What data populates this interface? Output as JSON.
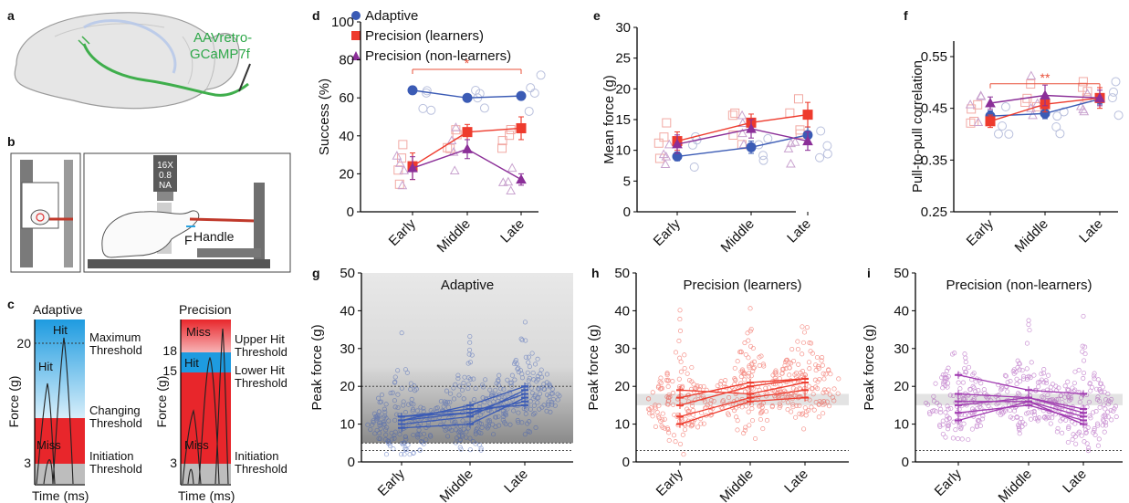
{
  "panels": {
    "a": {
      "label": "a",
      "virus_line1": "AAVretro-",
      "virus_line2": "GCaMP7f"
    },
    "b": {
      "label": "b",
      "objective_line1": "16X",
      "objective_line2": "0.8",
      "objective_line3": "NA",
      "force_label": "F",
      "handle_label": "Handle"
    },
    "c": {
      "label": "c",
      "adaptive_title": "Adaptive",
      "precision_title": "Precision",
      "ylabel": "Force (g)",
      "xlabel": "Time (ms)",
      "adaptive_ticks": [
        "20",
        "3"
      ],
      "precision_ticks": [
        "18",
        "15",
        "3"
      ],
      "adaptive_regions": [
        "Hit",
        "Hit",
        "Miss"
      ],
      "precision_regions": [
        "Miss",
        "Hit",
        "Miss"
      ],
      "adaptive_thresholds": [
        {
          "line1": "Maximum",
          "line2": "Threshold"
        },
        {
          "line1": "Changing",
          "line2": "Threshold"
        },
        {
          "line1": "Initiation",
          "line2": "Threshold"
        }
      ],
      "precision_thresholds": [
        {
          "line1": "Upper Hit",
          "line2": "Threshold"
        },
        {
          "line1": "Lower Hit",
          "line2": "Threshold"
        },
        {
          "line1": "Initiation",
          "line2": "Threshold"
        }
      ],
      "colors": {
        "hit_top": "#1e9be0",
        "hit_bottom": "#d7eefa",
        "miss": "#e8262b",
        "init": "#bdbdbd"
      }
    }
  },
  "legend": {
    "items": [
      {
        "label": "Adaptive",
        "color": "#3b5bb5",
        "marker": "circle"
      },
      {
        "label": "Precision (learners)",
        "color": "#ee3b2d",
        "marker": "square"
      },
      {
        "label": "Precision (non-learners)",
        "color": "#8b2f98",
        "marker": "triangle"
      }
    ]
  },
  "chart_data": [
    {
      "panel": "d",
      "type": "line",
      "ylabel": "Success (%)",
      "categories": [
        "Early",
        "Middle",
        "Late"
      ],
      "yticks": [
        "0",
        "20",
        "40",
        "60",
        "80",
        "100"
      ],
      "ylim": [
        0,
        100
      ],
      "significance": "*",
      "series": [
        {
          "name": "Adaptive",
          "values": [
            64,
            60,
            61
          ],
          "err": [
            2,
            2,
            2
          ]
        },
        {
          "name": "Precision (learners)",
          "values": [
            24,
            42,
            44
          ],
          "err": [
            7,
            4,
            6
          ]
        },
        {
          "name": "Precision (non-learners)",
          "values": [
            23,
            33,
            17
          ],
          "err": [
            6,
            5,
            3
          ]
        }
      ]
    },
    {
      "panel": "e",
      "type": "line",
      "ylabel": "Mean force (g)",
      "categories": [
        "Early",
        "Middle",
        "Late"
      ],
      "yticks": [
        "0",
        "5",
        "10",
        "15",
        "20",
        "25",
        "30"
      ],
      "ylim": [
        0,
        30
      ],
      "series": [
        {
          "name": "Adaptive",
          "values": [
            9,
            10.5,
            12.5
          ],
          "err": [
            0.7,
            1,
            1.3
          ]
        },
        {
          "name": "Precision (learners)",
          "values": [
            11.5,
            14.5,
            15.8
          ],
          "err": [
            1.5,
            1.4,
            2
          ]
        },
        {
          "name": "Precision (non-learners)",
          "values": [
            11,
            13.5,
            11.5
          ],
          "err": [
            1.5,
            1.5,
            1.5
          ]
        }
      ]
    },
    {
      "panel": "f",
      "type": "line",
      "ylabel": "Pull-to-pull correlation",
      "categories": [
        "Early",
        "Middle",
        "Late"
      ],
      "yticks": [
        "0.25",
        "0.35",
        "0.45",
        "0.55"
      ],
      "ylim": [
        0.25,
        0.58
      ],
      "significance": "**",
      "series": [
        {
          "name": "Adaptive",
          "values": [
            0.435,
            0.44,
            0.468
          ],
          "err": [
            0.01,
            0.01,
            0.01
          ]
        },
        {
          "name": "Precision (learners)",
          "values": [
            0.425,
            0.458,
            0.47
          ],
          "err": [
            0.012,
            0.015,
            0.02
          ]
        },
        {
          "name": "Precision (non-learners)",
          "values": [
            0.46,
            0.475,
            0.47
          ],
          "err": [
            0.012,
            0.02,
            0.015
          ]
        }
      ]
    },
    {
      "panel": "g",
      "type": "scatter",
      "title": "Adaptive",
      "ylabel": "Peak force (g)",
      "categories": [
        "Early",
        "Middle",
        "Late"
      ],
      "yticks": [
        "0",
        "10",
        "20",
        "30",
        "40",
        "50"
      ],
      "ylim": [
        0,
        50
      ],
      "color": "#3b5bb5",
      "band": [
        5,
        50
      ],
      "threshold_lines": [
        20,
        5,
        3
      ],
      "animals": [
        [
          11,
          13,
          16
        ],
        [
          10,
          12,
          19
        ],
        [
          12,
          14,
          15
        ],
        [
          11,
          15,
          20
        ],
        [
          9,
          10,
          17
        ],
        [
          12,
          13,
          18
        ]
      ]
    },
    {
      "panel": "h",
      "type": "scatter",
      "title": "Precision (learners)",
      "ylabel": "Peak force (g)",
      "categories": [
        "Early",
        "Middle",
        "Late"
      ],
      "yticks": [
        "0",
        "10",
        "20",
        "30",
        "40",
        "50"
      ],
      "ylim": [
        0,
        50
      ],
      "color": "#ee3b2d",
      "band": [
        15,
        18
      ],
      "threshold_lines": [
        3
      ],
      "animals": [
        [
          17,
          21,
          22
        ],
        [
          19,
          18,
          21
        ],
        [
          12,
          17,
          19
        ],
        [
          10,
          16,
          17
        ],
        [
          15,
          20,
          22
        ]
      ]
    },
    {
      "panel": "i",
      "type": "scatter",
      "title": "Precision (non-learners)",
      "ylabel": "Peak force (g)",
      "categories": [
        "Early",
        "Middle",
        "Late"
      ],
      "yticks": [
        "0",
        "10",
        "20",
        "30",
        "40",
        "50"
      ],
      "ylim": [
        0,
        50
      ],
      "color": "#a03ab0",
      "band": [
        15,
        18
      ],
      "threshold_lines": [
        3
      ],
      "animals": [
        [
          23,
          19,
          18
        ],
        [
          18,
          17,
          13
        ],
        [
          16,
          16,
          12
        ],
        [
          13,
          15,
          11
        ],
        [
          11,
          16,
          10
        ],
        [
          15,
          17,
          14
        ]
      ]
    }
  ]
}
